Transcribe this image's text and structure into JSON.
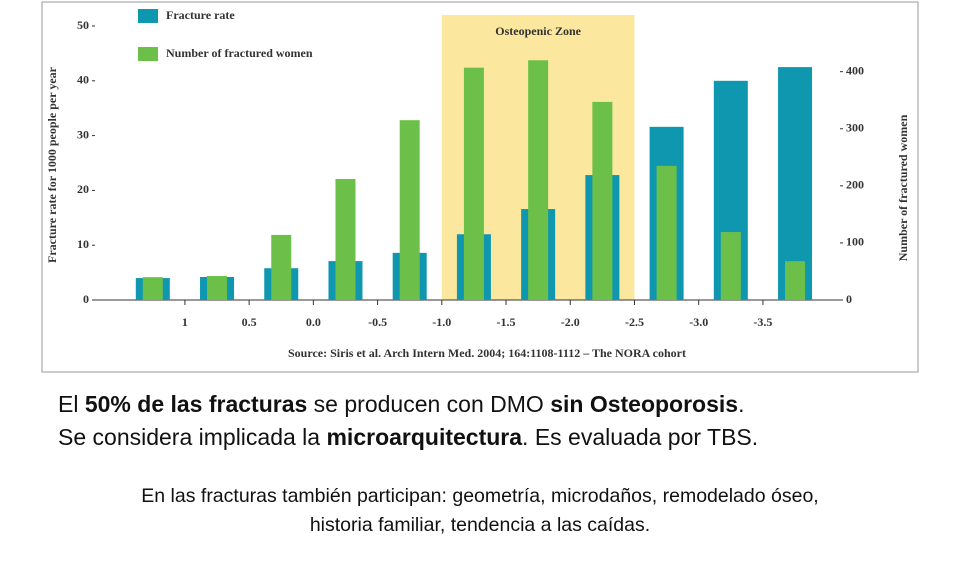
{
  "chart_data": {
    "type": "bar",
    "xlabel_note": null,
    "x": [
      1.25,
      0.75,
      0.25,
      -0.25,
      -0.75,
      -1.25,
      -1.75,
      -2.25,
      -2.75,
      -3.25,
      -3.75
    ],
    "xlim": [
      1.7,
      -4.1
    ],
    "xticks": [
      1.0,
      0.5,
      {
        "value": 0,
        "label": "0.0"
      },
      -0.5,
      {
        "value": -1,
        "label": "-1.0"
      },
      -1.5,
      {
        "value": -2,
        "label": "-2.0"
      },
      -2.5,
      {
        "value": -3,
        "label": "-3.0"
      },
      -3.5
    ],
    "ylabel": "Fracture rate for 1000 people per year",
    "y2label": "Number of fractured women",
    "ylim": [
      0,
      50
    ],
    "yticks": [
      0,
      10,
      20,
      30,
      40,
      50
    ],
    "y2lim": [
      0,
      480
    ],
    "y2ticks": [
      0,
      100,
      200,
      300,
      400
    ],
    "zone": {
      "from": -1.0,
      "to": -2.5,
      "label": "Osteopenic Zone",
      "color": "#fbe79d"
    },
    "series": [
      {
        "name": "Fracture rate",
        "color": "#0f97b0",
        "values": [
          4.0,
          4.2,
          5.8,
          7.1,
          8.6,
          12.0,
          16.6,
          22.8,
          31.6,
          40.0,
          42.5
        ]
      },
      {
        "name": "Number of fractured women",
        "color": "#6cc04a",
        "axis": "y2",
        "values": [
          40,
          42,
          114,
          212,
          315,
          407,
          420,
          347,
          235,
          119,
          68
        ]
      }
    ],
    "source": "Source: Siris et al. Arch Intern Med. 2004; 164:1108-1112 – The NORA cohort"
  },
  "paragraphs": [
    [
      {
        "text": "El "
      },
      {
        "text": "50% de las fracturas",
        "bold": true
      },
      {
        "text": " se producen con DMO "
      },
      {
        "text": "sin Osteoporosis",
        "bold": true
      },
      {
        "text": "."
      }
    ],
    [
      {
        "text": "Se considera implicada la "
      },
      {
        "text": "microarquitectura",
        "bold": true
      },
      {
        "text": ". Es evaluada por TBS."
      }
    ]
  ],
  "notes": [
    "En las fracturas también participan: geometría, microdaños, remodelado óseo,",
    "historia familiar, tendencia a las caídas."
  ]
}
